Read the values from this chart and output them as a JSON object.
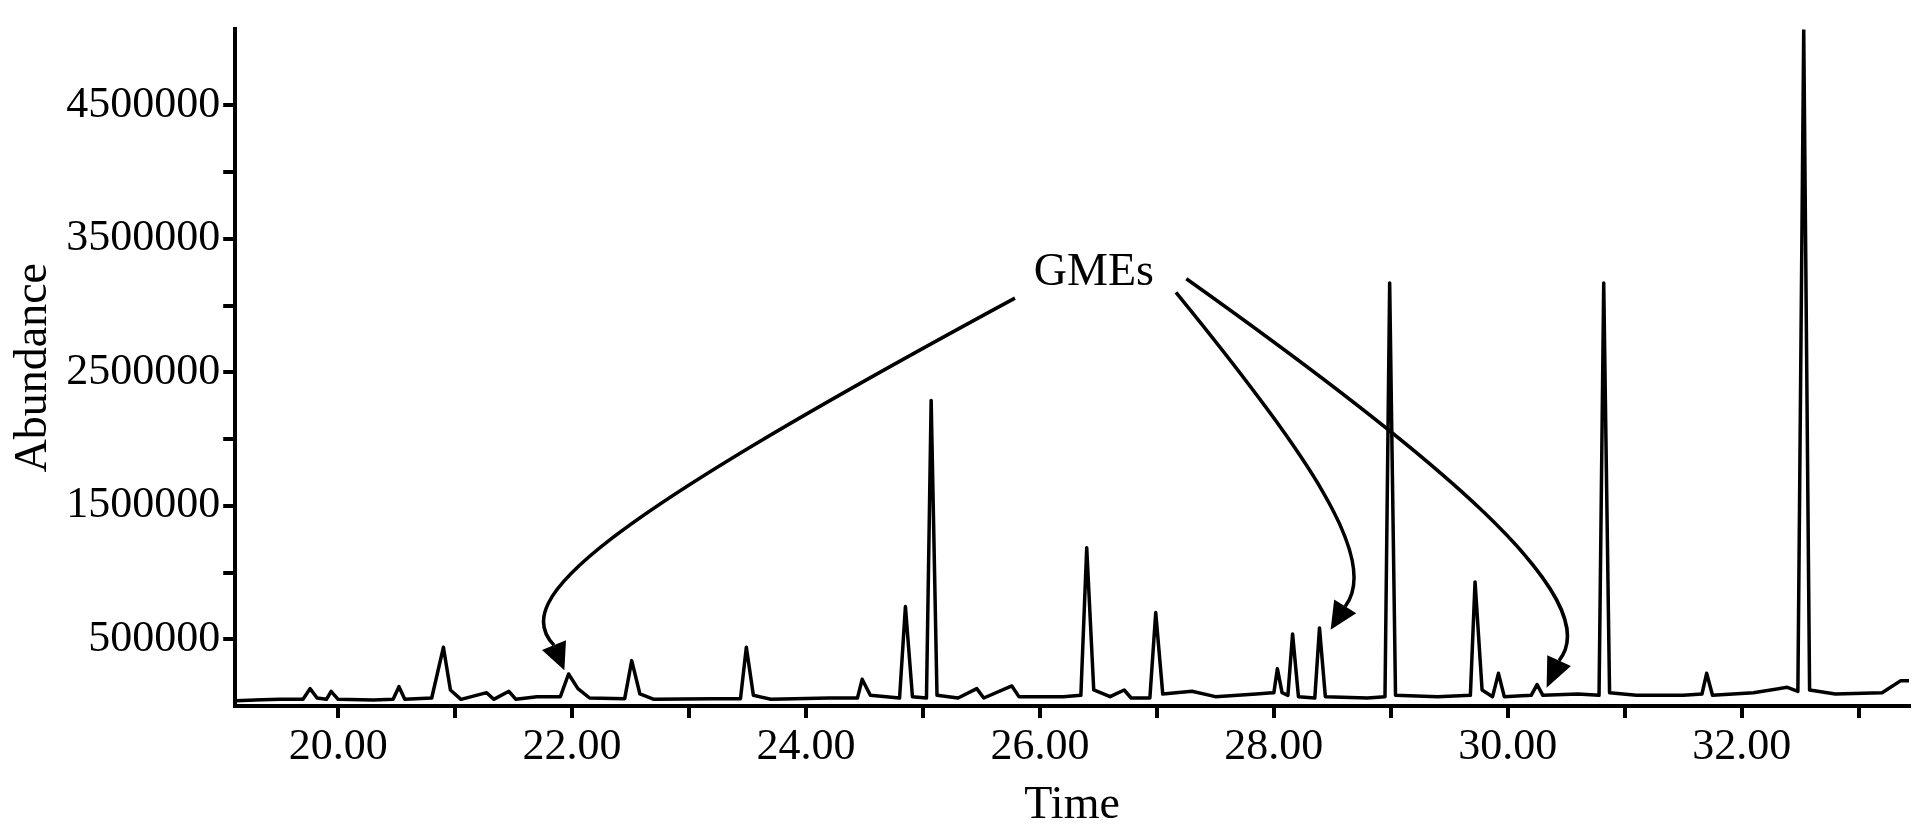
{
  "chart_data": {
    "type": "line",
    "xlabel": "Time",
    "ylabel": "Abundance",
    "annotations": [
      "GMEs"
    ],
    "xlim": [
      19.12,
      33.43
    ],
    "xticks": [
      {
        "value": 20,
        "label": "20.00"
      },
      {
        "value": 21,
        "label": null
      },
      {
        "value": 22,
        "label": "22.00"
      },
      {
        "value": 23,
        "label": null
      },
      {
        "value": 24,
        "label": "24.00"
      },
      {
        "value": 25,
        "label": null
      },
      {
        "value": 26,
        "label": "26.00"
      },
      {
        "value": 27,
        "label": null
      },
      {
        "value": 28,
        "label": "28.00"
      },
      {
        "value": 29,
        "label": null
      },
      {
        "value": 30,
        "label": "30.00"
      },
      {
        "value": 31,
        "label": null
      },
      {
        "value": 32,
        "label": "32.00"
      },
      {
        "value": 33,
        "label": null
      }
    ],
    "ylim": [
      0,
      5070000
    ],
    "yticks": [
      500000,
      {
        "value": 1000000,
        "label": null
      },
      1500000,
      {
        "value": 2000000,
        "label": null
      },
      2500000,
      {
        "value": 3000000,
        "label": null
      },
      3500000,
      {
        "value": 4000000,
        "label": null
      },
      4500000
    ],
    "grid": false,
    "legend": false,
    "marker": "none",
    "line_style": "solid",
    "series": [
      {
        "color": "#000000",
        "x": [
          19.12,
          19.5,
          19.7,
          19.76,
          19.82,
          19.9,
          19.94,
          20.0,
          20.3,
          20.47,
          20.52,
          20.57,
          20.8,
          20.9,
          20.96,
          21.05,
          21.27,
          21.33,
          21.46,
          21.52,
          21.7,
          21.9,
          21.97,
          22.05,
          22.15,
          22.45,
          22.51,
          22.58,
          22.7,
          23.2,
          23.44,
          23.49,
          23.55,
          23.7,
          24.2,
          24.44,
          24.48,
          24.55,
          24.8,
          24.85,
          24.91,
          25.03,
          25.07,
          25.12,
          25.3,
          25.46,
          25.52,
          25.76,
          25.82,
          26.2,
          26.35,
          26.4,
          26.46,
          26.6,
          26.72,
          26.78,
          26.94,
          26.99,
          27.05,
          27.3,
          27.5,
          27.85,
          28.0,
          28.03,
          28.07,
          28.12,
          28.16,
          28.21,
          28.35,
          28.39,
          28.44,
          28.8,
          28.95,
          28.99,
          29.04,
          29.4,
          29.68,
          29.72,
          29.78,
          29.87,
          29.92,
          29.97,
          30.2,
          30.25,
          30.3,
          30.6,
          30.78,
          30.82,
          30.87,
          31.1,
          31.5,
          31.66,
          31.7,
          31.75,
          32.1,
          32.39,
          32.48,
          32.53,
          32.58,
          32.8,
          33.2,
          33.36,
          33.43
        ],
        "values": [
          40000,
          50000,
          50000,
          130000,
          60000,
          50000,
          110000,
          50000,
          45000,
          50000,
          145000,
          50000,
          60000,
          440000,
          120000,
          50000,
          100000,
          50000,
          110000,
          50000,
          70000,
          70000,
          240000,
          130000,
          60000,
          55000,
          340000,
          90000,
          50000,
          55000,
          55000,
          440000,
          80000,
          50000,
          60000,
          60000,
          200000,
          80000,
          60000,
          745000,
          70000,
          60000,
          2290000,
          80000,
          60000,
          130000,
          60000,
          150000,
          70000,
          70000,
          80000,
          1185000,
          120000,
          70000,
          120000,
          60000,
          60000,
          700000,
          90000,
          110000,
          70000,
          90000,
          100000,
          280000,
          100000,
          80000,
          540000,
          70000,
          60000,
          585000,
          70000,
          60000,
          70000,
          3170000,
          80000,
          70000,
          80000,
          930000,
          120000,
          70000,
          245000,
          70000,
          80000,
          160000,
          80000,
          90000,
          80000,
          3170000,
          100000,
          80000,
          80000,
          90000,
          245000,
          80000,
          100000,
          140000,
          110000,
          5070000,
          120000,
          90000,
          100000,
          190000,
          190000
        ]
      }
    ]
  }
}
